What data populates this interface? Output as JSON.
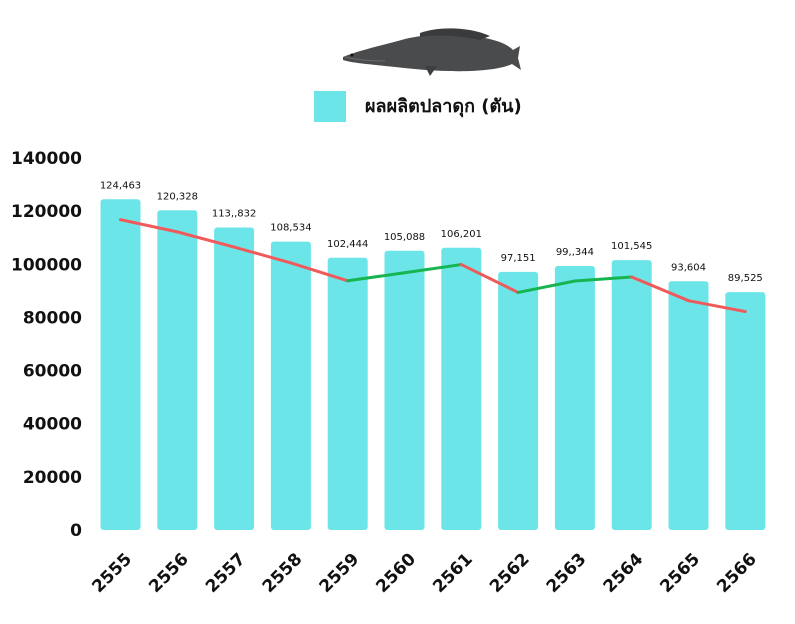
{
  "chart_data": {
    "type": "bar",
    "title": "",
    "xlabel": "",
    "ylabel": "",
    "categories": [
      "2555",
      "2556",
      "2557",
      "2558",
      "2559",
      "2560",
      "2561",
      "2562",
      "2563",
      "2564",
      "2565",
      "2566"
    ],
    "series": [
      {
        "name": "ผลผลิตปลาดุก (ตัน)",
        "color": "#6ce5e8",
        "values": [
          124463,
          120328,
          113832,
          108534,
          102444,
          105088,
          106201,
          97151,
          99344,
          101545,
          93604,
          89525
        ]
      }
    ],
    "data_labels": [
      "124,463",
      "120,328",
      "113,,832",
      "108,534",
      "102,444",
      "105,088",
      "106,201",
      "97,151",
      "99,,344",
      "101,545",
      "93,604",
      "89,525"
    ],
    "trend_line": {
      "values": [
        116800,
        112200,
        106500,
        100500,
        93800,
        96800,
        99900,
        89400,
        93700,
        95200,
        86300,
        82200
      ],
      "color_down": "#f05a5a",
      "color_up": "#16b550"
    },
    "ylim": [
      0,
      140000
    ],
    "yticks": [
      "0",
      "20000",
      "40000",
      "60000",
      "80000",
      "100000",
      "120000",
      "140000"
    ],
    "grid": false,
    "legend_position": "top-center",
    "decoration_icon": "catfish-icon"
  }
}
